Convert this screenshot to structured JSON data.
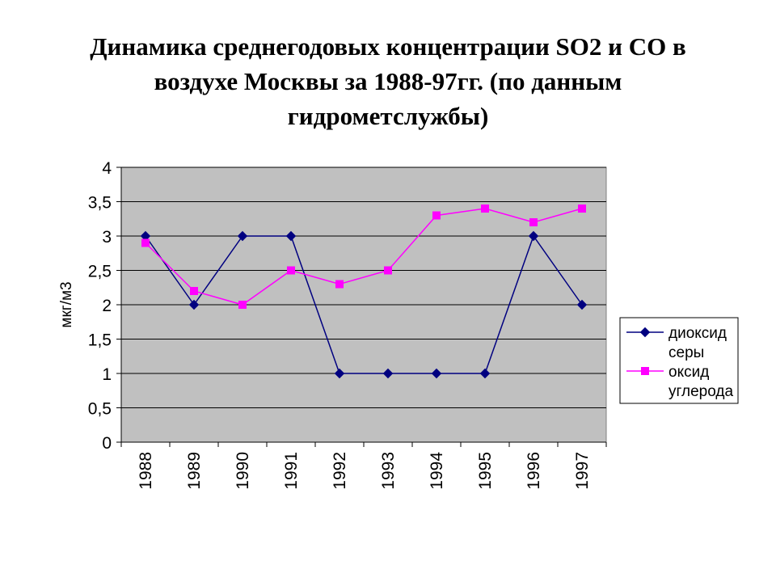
{
  "title_lines": [
    "Динамика среднегодовых концентрации SO2 и CO в",
    "воздухе Москвы за  1988-97гг. (по данным",
    "гидрометслужбы)"
  ],
  "chart_data": {
    "type": "line",
    "categories": [
      "1988",
      "1989",
      "1990",
      "1991",
      "1992",
      "1993",
      "1994",
      "1995",
      "1996",
      "1997"
    ],
    "series": [
      {
        "name": "диоксид серы",
        "legend_lines": [
          "диоксид",
          "серы"
        ],
        "color": "#000080",
        "marker": "diamond",
        "values": [
          3,
          2,
          3,
          3,
          1,
          1,
          1,
          1,
          3,
          2
        ]
      },
      {
        "name": "оксид углерода",
        "legend_lines": [
          "оксид",
          "углерода"
        ],
        "color": "#ff00ff",
        "marker": "square",
        "values": [
          2.9,
          2.2,
          2,
          2.5,
          2.3,
          2.5,
          3.3,
          3.4,
          3.2,
          3.4
        ]
      }
    ],
    "ylabel": "мкг/м3",
    "ylim": [
      0,
      4
    ],
    "yticks": [
      "0",
      "0,5",
      "1",
      "1,5",
      "2",
      "2,5",
      "3",
      "3,5",
      "4"
    ],
    "grid": true,
    "plot_background": "#c0c0c0",
    "legend_position": "right"
  }
}
